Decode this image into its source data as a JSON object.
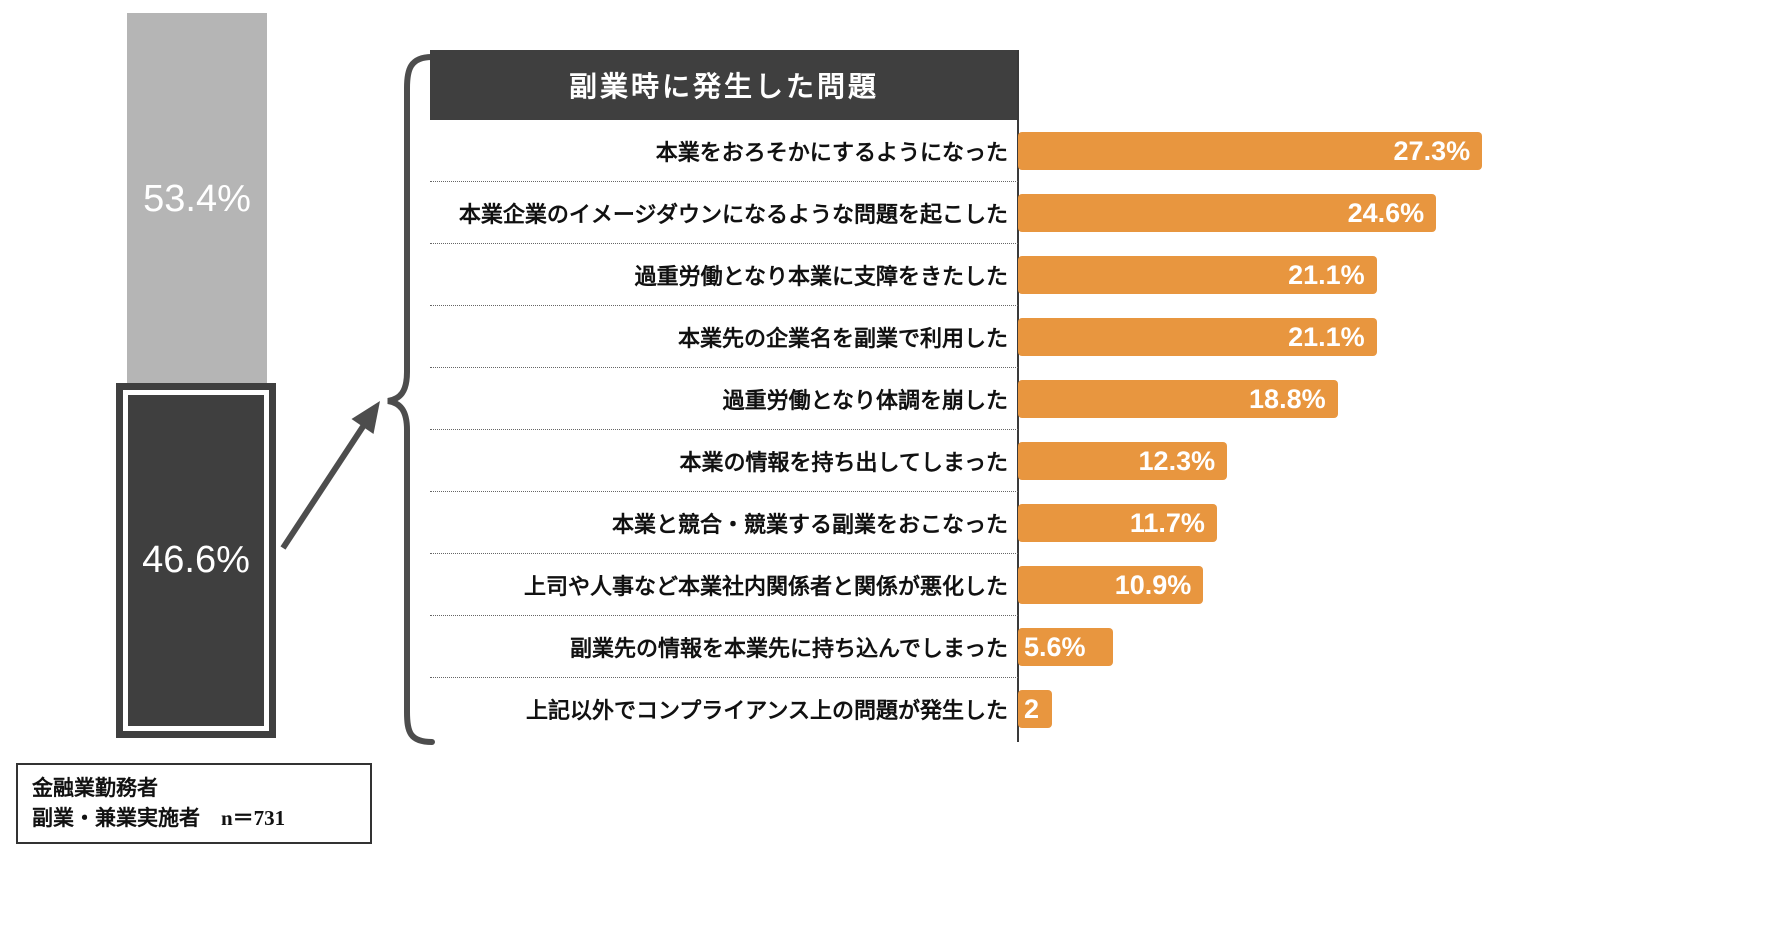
{
  "chart_data": [
    {
      "type": "bar",
      "subtype": "stacked-vertical-column",
      "segments": [
        {
          "label": "53.4%",
          "value": 53.4,
          "color": "#b5b5b5"
        },
        {
          "label": "46.6%",
          "value": 46.6,
          "color": "#3f3f3f"
        }
      ],
      "note": "dark 46.6% segment is highlighted with border and arrow pointing to detail chart"
    },
    {
      "type": "bar",
      "orientation": "horizontal",
      "title": "副業時に発生した問題",
      "categories": [
        "本業をおろそかにするようになった",
        "本業企業のイメージダウンになるような問題を起こした",
        "過重労働となり本業に支障をきたした",
        "本業先の企業名を副業で利用した",
        "過重労働となり体調を崩した",
        "本業の情報を持ち出してしまった",
        "本業と競合・競業する副業をおこなった",
        "上司や人事など本業社内関係者と関係が悪化した",
        "副業先の情報を本業先に持ち込んでしまった",
        "上記以外でコンプライアンス上の問題が発生した"
      ],
      "values": [
        27.3,
        24.6,
        21.1,
        21.1,
        18.8,
        12.3,
        11.7,
        10.9,
        5.6,
        2
      ],
      "value_labels": [
        "27.3%",
        "24.6%",
        "21.1%",
        "21.1%",
        "18.8%",
        "12.3%",
        "11.7%",
        "10.9%",
        "5.6%",
        "2"
      ],
      "xlim": [
        0,
        30
      ],
      "bar_color": "#e8963f",
      "grid": false,
      "legend": "none"
    }
  ],
  "footnote": {
    "lines": [
      "金融業勤務者",
      "副業・兼業実施者　n＝731"
    ]
  },
  "colors": {
    "bar_orange": "#e8963f",
    "dark": "#3f3f3f",
    "gray": "#b5b5b5",
    "connector": "#4d4d4d"
  }
}
